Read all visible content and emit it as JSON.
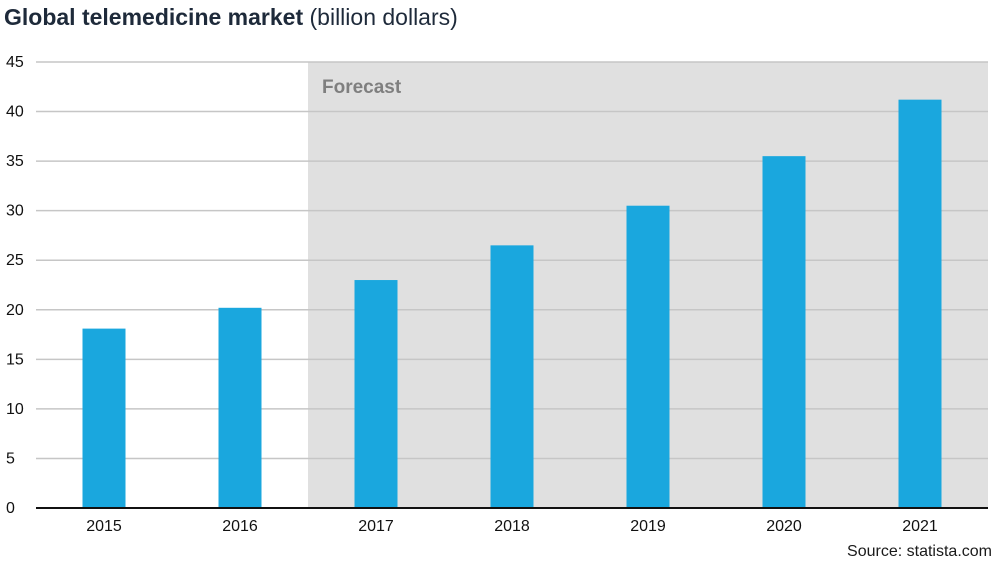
{
  "chart_data": {
    "type": "bar",
    "title": "Global telemedicine market",
    "unit_label": "(billion dollars)",
    "categories": [
      "2015",
      "2016",
      "2017",
      "2018",
      "2019",
      "2020",
      "2021"
    ],
    "values": [
      18.1,
      20.2,
      23.0,
      26.5,
      30.5,
      35.5,
      41.2
    ],
    "ylim": [
      0,
      45
    ],
    "yticks": [
      0,
      5,
      10,
      15,
      20,
      25,
      30,
      35,
      40,
      45
    ],
    "grid": true,
    "forecast_from": "2017",
    "forecast_label": "Forecast",
    "source": "Source: statista.com",
    "bar_color": "#1aa7de",
    "forecast_bg": "#e0e0e0",
    "grid_color": "#c6c6c6"
  }
}
